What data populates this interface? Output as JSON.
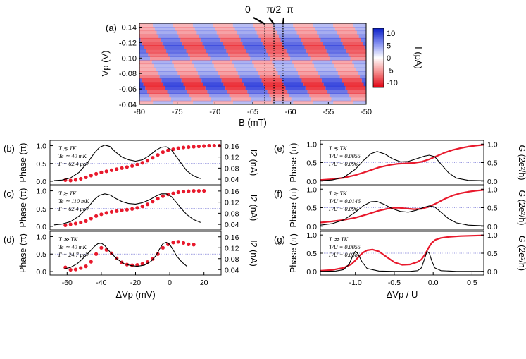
{
  "chart_data": [
    {
      "id": "a",
      "panel_label": "(a)",
      "type": "heatmap",
      "xlabel": "B (mT)",
      "ylabel": "Vp (V)",
      "xlim": [
        -80,
        -50
      ],
      "ylim": [
        -0.04,
        -0.145
      ],
      "xticks": [
        "-80",
        "-75",
        "-70",
        "-65",
        "-60",
        "-55",
        "-50"
      ],
      "yticks": [
        "-0.14",
        "-0.12",
        "-0.10",
        "-0.08",
        "-0.06",
        "-0.04"
      ],
      "colorbar": {
        "label": "I (pA)",
        "ticks": [
          "10",
          "5",
          "0",
          "-5",
          "-10"
        ],
        "range": [
          -12,
          12
        ]
      },
      "phase_markers": [
        {
          "label": "0",
          "B": -63.4
        },
        {
          "label": "π/2",
          "B": -62.2
        },
        {
          "label": "π",
          "B": -61.0
        }
      ]
    },
    {
      "id": "b",
      "panel_label": "(b)",
      "type": "line",
      "annotations": [
        "T ≲ TK",
        "Te ≃ 40 mK",
        "Γ = 62.4 μeV"
      ],
      "ylabel_left": "Phase (π)",
      "ylabel_right": "I2 (nA)",
      "xlim": [
        -70,
        30
      ],
      "ylim_left": [
        -0.1,
        1.15
      ],
      "ylim_right": [
        0.02,
        0.18
      ],
      "yticks_left": [
        "0.0",
        "0.5",
        "1.0"
      ],
      "yticks_right": [
        "0.04",
        "0.08",
        "0.12",
        "0.16"
      ],
      "series": [
        {
          "name": "phase",
          "axis": "left",
          "style": "markers",
          "x": [
            -61,
            -58,
            -55,
            -52,
            -49,
            -46,
            -43,
            -40,
            -37,
            -34,
            -31,
            -28,
            -25,
            -22,
            -19,
            -16,
            -13,
            -10,
            -7,
            -4,
            -1,
            2,
            5,
            8,
            11,
            14,
            17,
            20,
            23,
            26,
            29
          ],
          "y": [
            0.03,
            0.02,
            0.04,
            0.07,
            0.11,
            0.16,
            0.21,
            0.25,
            0.28,
            0.31,
            0.34,
            0.37,
            0.4,
            0.43,
            0.47,
            0.52,
            0.58,
            0.66,
            0.74,
            0.82,
            0.87,
            0.9,
            0.93,
            0.95,
            0.96,
            0.97,
            0.98,
            0.99,
            1.0,
            1.0,
            1.0
          ]
        },
        {
          "name": "I2",
          "axis": "right",
          "style": "line",
          "x": [
            -68,
            -63,
            -58,
            -53,
            -48,
            -44,
            -41,
            -38,
            -35,
            -32,
            -28,
            -24,
            -20,
            -16,
            -12,
            -8,
            -5,
            -2,
            1,
            4,
            7,
            10,
            14,
            18
          ],
          "y": [
            0.035,
            0.037,
            0.045,
            0.065,
            0.1,
            0.135,
            0.155,
            0.163,
            0.158,
            0.14,
            0.12,
            0.11,
            0.105,
            0.11,
            0.125,
            0.145,
            0.155,
            0.157,
            0.145,
            0.12,
            0.095,
            0.07,
            0.052,
            0.042
          ]
        }
      ]
    },
    {
      "id": "c",
      "panel_label": "(c)",
      "type": "line",
      "annotations": [
        "T ≳ TK",
        "Te ≃ 110 mK",
        "Γ = 62.4 μeV"
      ],
      "ylabel_left": "Phase (π)",
      "ylabel_right": "I2 (nA)",
      "xlim": [
        -70,
        30
      ],
      "ylim_left": [
        -0.1,
        1.15
      ],
      "ylim_right": [
        0.02,
        0.18
      ],
      "yticks_left": [
        "0.0",
        "0.5",
        "1.0"
      ],
      "yticks_right": [
        "0.04",
        "0.08",
        "0.12",
        "0.16"
      ],
      "series": [
        {
          "name": "phase",
          "axis": "left",
          "style": "markers",
          "x": [
            -61,
            -58,
            -55,
            -52,
            -49,
            -46,
            -43,
            -40,
            -37,
            -34,
            -31,
            -28,
            -25,
            -22,
            -19,
            -16,
            -13,
            -10,
            -7,
            -4,
            -1,
            2,
            5,
            8,
            11,
            14,
            17,
            20
          ],
          "y": [
            0.03,
            0.06,
            0.08,
            0.11,
            0.15,
            0.22,
            0.29,
            0.34,
            0.38,
            0.41,
            0.43,
            0.45,
            0.47,
            0.49,
            0.52,
            0.56,
            0.62,
            0.7,
            0.78,
            0.85,
            0.9,
            0.93,
            0.96,
            0.98,
            0.99,
            1.0,
            1.0,
            1.0
          ]
        },
        {
          "name": "I2",
          "axis": "right",
          "style": "line",
          "x": [
            -68,
            -63,
            -58,
            -53,
            -48,
            -44,
            -41,
            -38,
            -35,
            -32,
            -28,
            -24,
            -20,
            -16,
            -12,
            -8,
            -5,
            -2,
            1,
            4,
            7,
            10,
            14,
            18
          ],
          "y": [
            0.038,
            0.041,
            0.05,
            0.07,
            0.1,
            0.13,
            0.145,
            0.15,
            0.146,
            0.135,
            0.122,
            0.115,
            0.113,
            0.118,
            0.128,
            0.142,
            0.15,
            0.15,
            0.14,
            0.118,
            0.095,
            0.075,
            0.057,
            0.047
          ]
        }
      ]
    },
    {
      "id": "d",
      "panel_label": "(d)",
      "type": "line",
      "annotations": [
        "T ≫ TK",
        "Te ≃ 40 mK",
        "Γ = 24.7 μeV"
      ],
      "ylabel_left": "Phase (π)",
      "ylabel_right": "I2 (nA)",
      "xlabel": "ΔVp (mV)",
      "xlim": [
        -70,
        30
      ],
      "ylim_left": [
        -0.1,
        1.15
      ],
      "ylim_right": [
        0.02,
        0.18
      ],
      "xticks": [
        "-60",
        "-40",
        "-20",
        "0",
        "20"
      ],
      "yticks_left": [
        "0.0",
        "0.5",
        "1.0"
      ],
      "yticks_right": [
        "0.04",
        "0.08",
        "0.12",
        "0.16"
      ],
      "series": [
        {
          "name": "phase",
          "axis": "left",
          "style": "markers",
          "x": [
            -61,
            -58,
            -55,
            -52,
            -49,
            -46,
            -43,
            -40,
            -37,
            -34,
            -31,
            -28,
            -25,
            -22,
            -19,
            -16,
            -13,
            -10,
            -7,
            -4,
            -1,
            2,
            5,
            8,
            11,
            14
          ],
          "y": [
            0.12,
            0.05,
            0.06,
            0.1,
            0.15,
            0.28,
            0.5,
            0.68,
            0.62,
            0.52,
            0.38,
            0.26,
            0.2,
            0.18,
            0.19,
            0.22,
            0.27,
            0.36,
            0.5,
            0.68,
            0.78,
            0.83,
            0.85,
            0.82,
            0.78,
            0.77
          ]
        },
        {
          "name": "I2",
          "axis": "right",
          "style": "line",
          "x": [
            -62,
            -58,
            -54,
            -50,
            -47,
            -44,
            -42,
            -40,
            -38,
            -35,
            -31,
            -27,
            -23,
            -19,
            -15,
            -11,
            -8,
            -6,
            -4,
            -2,
            0,
            2,
            4,
            7,
            10
          ],
          "y": [
            0.042,
            0.048,
            0.062,
            0.085,
            0.105,
            0.125,
            0.135,
            0.137,
            0.128,
            0.105,
            0.08,
            0.062,
            0.055,
            0.052,
            0.056,
            0.07,
            0.092,
            0.115,
            0.135,
            0.14,
            0.132,
            0.112,
            0.09,
            0.068,
            0.052
          ]
        }
      ]
    },
    {
      "id": "e",
      "panel_label": "(e)",
      "type": "line",
      "annotations": [
        "T ≲ TK",
        "T/U = 0.0055",
        "Γ/U = 0.096"
      ],
      "ylabel_left": "Phase (π)",
      "ylabel_right": "G (2e²/h)",
      "xlim": [
        -1.45,
        0.65
      ],
      "ylim_left": [
        -0.1,
        1.1
      ],
      "ylim_right": [
        -0.1,
        1.1
      ],
      "yticks_left": [
        "0.0",
        "0.5",
        "1.0"
      ],
      "yticks_right": [
        "0.0",
        "0.5",
        "1.0"
      ],
      "series": [
        {
          "name": "phase",
          "axis": "left",
          "style": "line",
          "x": [
            -1.45,
            -1.3,
            -1.15,
            -1.0,
            -0.85,
            -0.7,
            -0.55,
            -0.45,
            -0.35,
            -0.25,
            -0.15,
            -0.05,
            0.05,
            0.15,
            0.25,
            0.35,
            0.45,
            0.55,
            0.65
          ],
          "y": [
            0.03,
            0.05,
            0.09,
            0.16,
            0.26,
            0.37,
            0.44,
            0.47,
            0.48,
            0.49,
            0.52,
            0.59,
            0.68,
            0.77,
            0.84,
            0.89,
            0.93,
            0.96,
            0.98
          ]
        },
        {
          "name": "G",
          "axis": "right",
          "style": "line",
          "x": [
            -1.45,
            -1.3,
            -1.15,
            -1.0,
            -0.9,
            -0.8,
            -0.72,
            -0.62,
            -0.52,
            -0.42,
            -0.32,
            -0.22,
            -0.12,
            -0.05,
            0.02,
            0.1,
            0.2,
            0.3,
            0.45,
            0.65
          ],
          "y": [
            0.01,
            0.03,
            0.1,
            0.32,
            0.55,
            0.74,
            0.8,
            0.73,
            0.6,
            0.52,
            0.53,
            0.6,
            0.67,
            0.7,
            0.66,
            0.46,
            0.22,
            0.08,
            0.02,
            0.01
          ]
        }
      ]
    },
    {
      "id": "f",
      "panel_label": "(f)",
      "type": "line",
      "annotations": [
        "T ≳ TK",
        "T/U = 0.0146",
        "Γ/U = 0.096"
      ],
      "ylabel_left": "Phase (π)",
      "ylabel_right": "G (2e²/h)",
      "xlim": [
        -1.45,
        0.65
      ],
      "ylim_left": [
        -0.1,
        1.1
      ],
      "ylim_right": [
        -0.1,
        1.1
      ],
      "yticks_left": [
        "0.0",
        "0.5",
        "1.0"
      ],
      "yticks_right": [
        "0.0",
        "0.5",
        "1.0"
      ],
      "series": [
        {
          "name": "phase",
          "axis": "left",
          "style": "line",
          "x": [
            -1.45,
            -1.3,
            -1.15,
            -1.0,
            -0.85,
            -0.7,
            -0.55,
            -0.45,
            -0.35,
            -0.25,
            -0.15,
            -0.05,
            0.05,
            0.15,
            0.25,
            0.35,
            0.45,
            0.55,
            0.65
          ],
          "y": [
            0.1,
            0.13,
            0.17,
            0.23,
            0.32,
            0.42,
            0.49,
            0.5,
            0.48,
            0.46,
            0.47,
            0.53,
            0.63,
            0.74,
            0.83,
            0.89,
            0.93,
            0.96,
            0.98
          ]
        },
        {
          "name": "G",
          "axis": "right",
          "style": "line",
          "x": [
            -1.45,
            -1.3,
            -1.15,
            -1.0,
            -0.9,
            -0.8,
            -0.72,
            -0.62,
            -0.52,
            -0.42,
            -0.32,
            -0.22,
            -0.12,
            -0.05,
            0.02,
            0.1,
            0.2,
            0.3,
            0.45,
            0.65
          ],
          "y": [
            0.03,
            0.07,
            0.17,
            0.38,
            0.55,
            0.66,
            0.67,
            0.58,
            0.47,
            0.4,
            0.38,
            0.43,
            0.51,
            0.55,
            0.52,
            0.38,
            0.2,
            0.09,
            0.03,
            0.01
          ]
        }
      ]
    },
    {
      "id": "g",
      "panel_label": "(g)",
      "type": "line",
      "annotations": [
        "T ≫ TK",
        "T/U = 0.0055",
        "Γ/U = 0.038"
      ],
      "ylabel_left": "Phase (π)",
      "ylabel_right": "G (2e²/h)",
      "xlabel": "ΔVp / U",
      "xlim": [
        -1.45,
        0.65
      ],
      "ylim_left": [
        -0.1,
        1.1
      ],
      "ylim_right": [
        -0.1,
        1.1
      ],
      "xticks": [
        "-1.0",
        "-0.5",
        "0.0",
        "0.5"
      ],
      "yticks_left": [
        "0.0",
        "0.5",
        "1.0"
      ],
      "yticks_right": [
        "0.0",
        "0.5",
        "1.0"
      ],
      "series": [
        {
          "name": "phase",
          "axis": "left",
          "style": "line",
          "x": [
            -1.45,
            -1.3,
            -1.15,
            -1.05,
            -1.0,
            -0.95,
            -0.9,
            -0.85,
            -0.78,
            -0.7,
            -0.6,
            -0.5,
            -0.4,
            -0.3,
            -0.2,
            -0.15,
            -0.1,
            -0.06,
            -0.02,
            0.03,
            0.1,
            0.2,
            0.35,
            0.5,
            0.65
          ],
          "y": [
            0.02,
            0.04,
            0.1,
            0.2,
            0.3,
            0.42,
            0.52,
            0.58,
            0.6,
            0.55,
            0.4,
            0.25,
            0.18,
            0.19,
            0.26,
            0.33,
            0.48,
            0.65,
            0.78,
            0.87,
            0.92,
            0.95,
            0.97,
            0.98,
            0.99
          ]
        },
        {
          "name": "G",
          "axis": "right",
          "style": "line",
          "x": [
            -1.45,
            -1.25,
            -1.15,
            -1.08,
            -1.03,
            -1.0,
            -0.97,
            -0.92,
            -0.85,
            -0.7,
            -0.5,
            -0.3,
            -0.2,
            -0.15,
            -0.11,
            -0.08,
            -0.05,
            -0.02,
            0.02,
            0.1,
            0.3,
            0.65
          ],
          "y": [
            0.0,
            0.01,
            0.05,
            0.2,
            0.45,
            0.55,
            0.5,
            0.28,
            0.08,
            0.01,
            0.0,
            0.0,
            0.02,
            0.1,
            0.35,
            0.55,
            0.5,
            0.3,
            0.1,
            0.02,
            0.0,
            0.0
          ]
        }
      ]
    }
  ],
  "colors": {
    "phase": "#e8192c",
    "curve": "#000000",
    "ref": "#7a7ad6",
    "pos": "#1a2bd8",
    "neg": "#e8101a"
  }
}
